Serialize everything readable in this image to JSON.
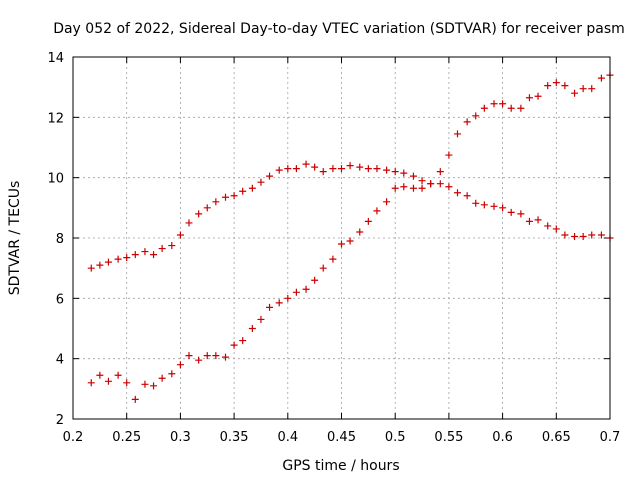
{
  "chart_data": {
    "type": "scatter",
    "title": "Day 052 of 2022, Sidereal Day-to-day VTEC variation (SDTVAR) for receiver pasm",
    "xlabel": "GPS time / hours",
    "ylabel": "SDTVAR / TECUs",
    "xlim": [
      0.2,
      0.7
    ],
    "ylim": [
      2,
      14
    ],
    "xticks": [
      "0.2",
      "0.25",
      "0.3",
      "0.35",
      "0.4",
      "0.45",
      "0.5",
      "0.55",
      "0.6",
      "0.65",
      "0.7"
    ],
    "yticks": [
      "2",
      "4",
      "6",
      "8",
      "10",
      "12",
      "14"
    ],
    "grid": true,
    "marker_color": "#cc0000",
    "series": [
      {
        "name": "series-upper",
        "points": [
          [
            0.217,
            7.0
          ],
          [
            0.225,
            7.1
          ],
          [
            0.233,
            7.2
          ],
          [
            0.242,
            7.3
          ],
          [
            0.25,
            7.35
          ],
          [
            0.258,
            7.45
          ],
          [
            0.267,
            7.55
          ],
          [
            0.275,
            7.45
          ],
          [
            0.283,
            7.65
          ],
          [
            0.292,
            7.75
          ],
          [
            0.3,
            8.1
          ],
          [
            0.308,
            8.5
          ],
          [
            0.317,
            8.8
          ],
          [
            0.325,
            9.0
          ],
          [
            0.333,
            9.2
          ],
          [
            0.342,
            9.35
          ],
          [
            0.35,
            9.4
          ],
          [
            0.358,
            9.55
          ],
          [
            0.367,
            9.65
          ],
          [
            0.375,
            9.85
          ],
          [
            0.383,
            10.05
          ],
          [
            0.392,
            10.25
          ],
          [
            0.4,
            10.3
          ],
          [
            0.408,
            10.3
          ],
          [
            0.417,
            10.45
          ],
          [
            0.425,
            10.35
          ],
          [
            0.433,
            10.2
          ],
          [
            0.442,
            10.3
          ],
          [
            0.45,
            10.3
          ],
          [
            0.458,
            10.4
          ],
          [
            0.467,
            10.35
          ],
          [
            0.475,
            10.3
          ],
          [
            0.483,
            10.3
          ],
          [
            0.492,
            10.25
          ],
          [
            0.5,
            10.2
          ],
          [
            0.508,
            10.15
          ],
          [
            0.517,
            10.05
          ],
          [
            0.525,
            9.9
          ],
          [
            0.533,
            9.8
          ],
          [
            0.542,
            9.8
          ],
          [
            0.55,
            9.7
          ],
          [
            0.558,
            9.5
          ],
          [
            0.567,
            9.4
          ],
          [
            0.575,
            9.15
          ],
          [
            0.583,
            9.1
          ],
          [
            0.592,
            9.05
          ],
          [
            0.6,
            9.0
          ],
          [
            0.608,
            8.85
          ],
          [
            0.617,
            8.8
          ],
          [
            0.625,
            8.55
          ],
          [
            0.633,
            8.6
          ],
          [
            0.642,
            8.4
          ],
          [
            0.65,
            8.3
          ],
          [
            0.658,
            8.1
          ],
          [
            0.667,
            8.05
          ],
          [
            0.675,
            8.05
          ],
          [
            0.683,
            8.1
          ],
          [
            0.692,
            8.1
          ],
          [
            0.7,
            8.0
          ]
        ]
      },
      {
        "name": "series-lower",
        "points": [
          [
            0.217,
            3.2
          ],
          [
            0.225,
            3.45
          ],
          [
            0.233,
            3.25
          ],
          [
            0.242,
            3.45
          ],
          [
            0.25,
            3.2
          ],
          [
            0.258,
            2.65
          ],
          [
            0.267,
            3.15
          ],
          [
            0.275,
            3.1
          ],
          [
            0.283,
            3.35
          ],
          [
            0.292,
            3.5
          ],
          [
            0.3,
            3.8
          ],
          [
            0.308,
            4.1
          ],
          [
            0.317,
            3.95
          ],
          [
            0.325,
            4.1
          ],
          [
            0.333,
            4.1
          ],
          [
            0.342,
            4.05
          ],
          [
            0.35,
            4.45
          ],
          [
            0.358,
            4.6
          ],
          [
            0.367,
            5.0
          ],
          [
            0.375,
            5.3
          ],
          [
            0.383,
            5.7
          ],
          [
            0.392,
            5.85
          ],
          [
            0.4,
            6.0
          ],
          [
            0.408,
            6.2
          ],
          [
            0.417,
            6.3
          ],
          [
            0.425,
            6.6
          ],
          [
            0.433,
            7.0
          ],
          [
            0.442,
            7.3
          ],
          [
            0.45,
            7.8
          ],
          [
            0.458,
            7.9
          ],
          [
            0.467,
            8.2
          ],
          [
            0.475,
            8.55
          ],
          [
            0.483,
            8.9
          ],
          [
            0.492,
            9.2
          ],
          [
            0.5,
            9.65
          ],
          [
            0.508,
            9.7
          ],
          [
            0.517,
            9.65
          ],
          [
            0.525,
            9.65
          ],
          [
            0.533,
            9.8
          ],
          [
            0.542,
            10.2
          ],
          [
            0.55,
            10.75
          ],
          [
            0.558,
            11.45
          ],
          [
            0.567,
            11.85
          ],
          [
            0.575,
            12.05
          ],
          [
            0.583,
            12.3
          ],
          [
            0.592,
            12.45
          ],
          [
            0.6,
            12.45
          ],
          [
            0.608,
            12.3
          ],
          [
            0.617,
            12.3
          ],
          [
            0.625,
            12.65
          ],
          [
            0.633,
            12.7
          ],
          [
            0.642,
            13.05
          ],
          [
            0.65,
            13.15
          ],
          [
            0.658,
            13.05
          ],
          [
            0.667,
            12.8
          ],
          [
            0.675,
            12.95
          ],
          [
            0.683,
            12.95
          ],
          [
            0.692,
            13.3
          ],
          [
            0.7,
            13.4
          ]
        ]
      }
    ]
  }
}
